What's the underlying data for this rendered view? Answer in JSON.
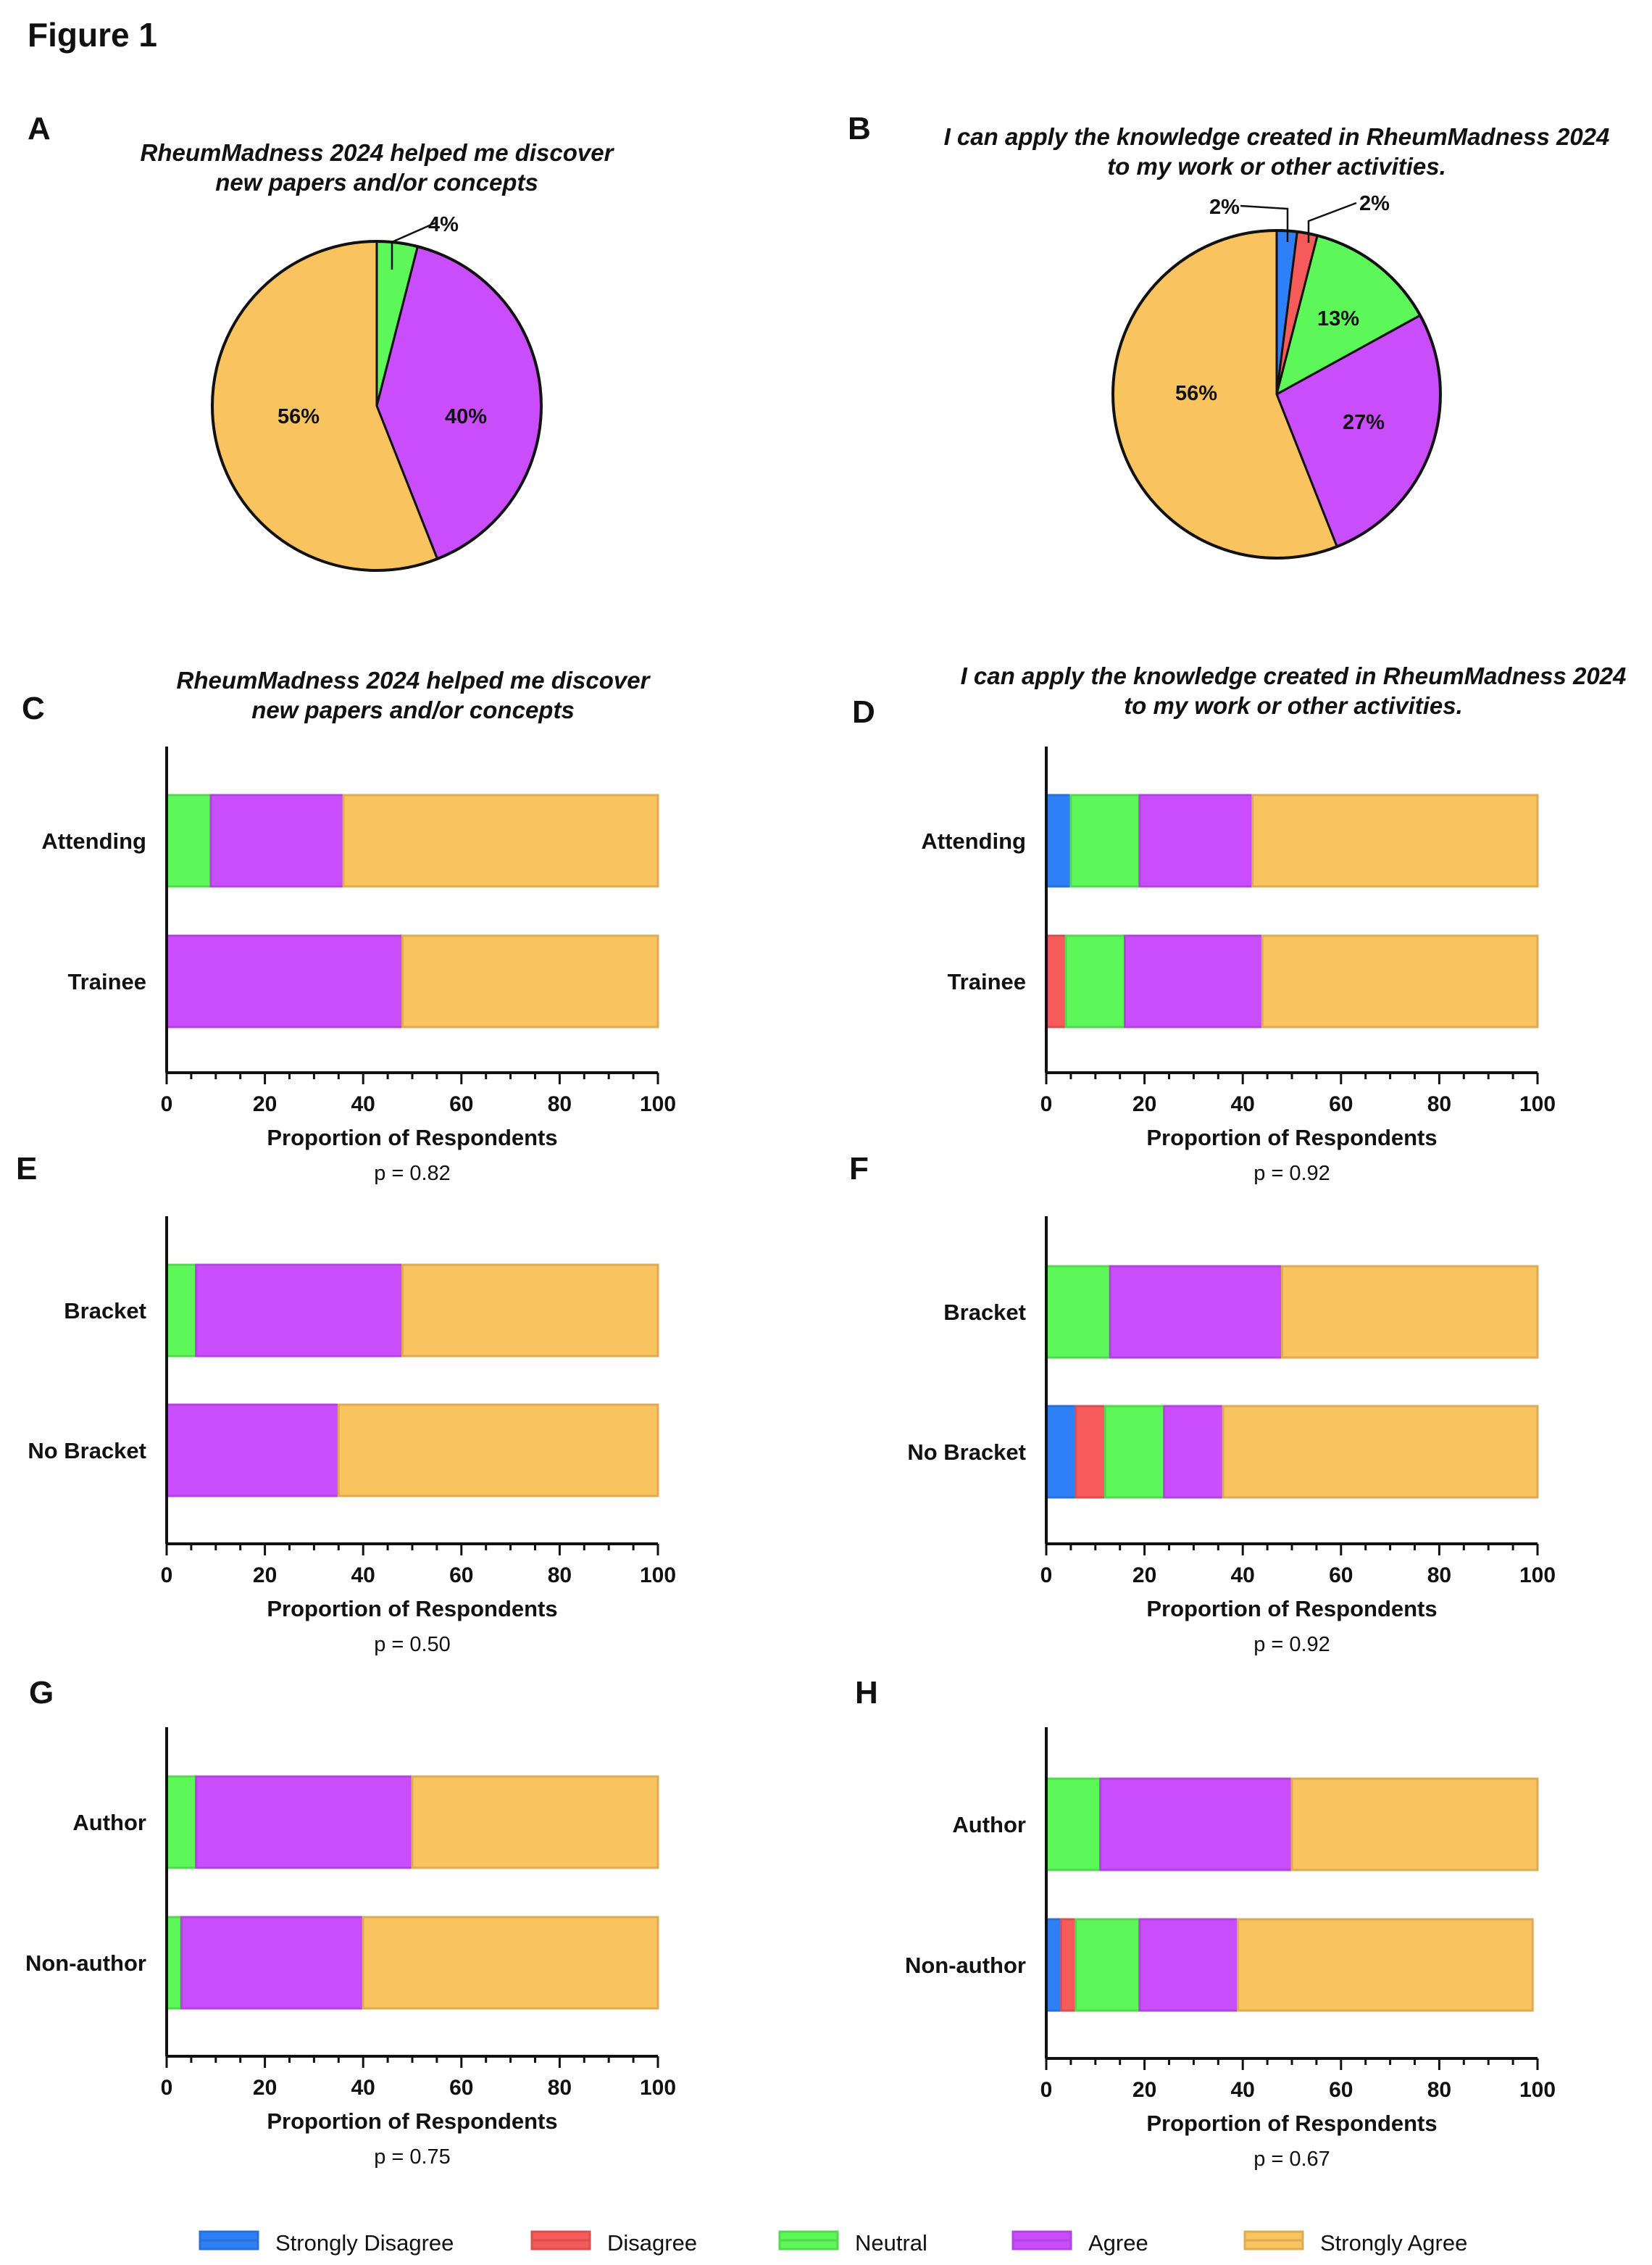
{
  "figure_title": "Figure 1",
  "colors": {
    "Strongly Disagree": "#2f80f7",
    "Disagree": "#f75a5a",
    "Neutral": "#5ef75a",
    "Agree": "#c94dfb",
    "Strongly Agree": "#f9c45f"
  },
  "legend": [
    "Strongly Disagree",
    "Disagree",
    "Neutral",
    "Agree",
    "Strongly Agree"
  ],
  "chart_data": [
    {
      "id": "A",
      "type": "pie",
      "title": "RheumMadness 2024 helped me discover new papers and/or concepts",
      "title_lines": [
        "RheumMadness 2024 helped me discover",
        "new papers and/or concepts"
      ],
      "slices": [
        {
          "category": "Neutral",
          "value": 4,
          "label": "4%"
        },
        {
          "category": "Agree",
          "value": 40,
          "label": "40%"
        },
        {
          "category": "Strongly Agree",
          "value": 56,
          "label": "56%"
        }
      ]
    },
    {
      "id": "B",
      "type": "pie",
      "title": "I can apply the knowledge created in RheumMadness 2024 to my work or other activities.",
      "title_lines": [
        "I can apply the knowledge created in RheumMadness 2024",
        "to my work or other activities."
      ],
      "slices": [
        {
          "category": "Strongly Disagree",
          "value": 2,
          "label": "2%"
        },
        {
          "category": "Disagree",
          "value": 2,
          "label": "2%"
        },
        {
          "category": "Neutral",
          "value": 13,
          "label": "13%"
        },
        {
          "category": "Agree",
          "value": 27,
          "label": "27%"
        },
        {
          "category": "Strongly Agree",
          "value": 56,
          "label": "56%"
        }
      ]
    },
    {
      "id": "C",
      "type": "bar",
      "orientation": "horizontal",
      "stacked": true,
      "title_lines": [
        "RheumMadness 2024 helped me discover",
        "new papers and/or concepts"
      ],
      "xlabel": "Proportion of Respondents",
      "xlim": [
        0,
        100
      ],
      "xticks": [
        "0",
        "20",
        "40",
        "60",
        "80",
        "100"
      ],
      "pvalue": "p = 0.82",
      "categories": [
        "Attending",
        "Trainee"
      ],
      "series": [
        {
          "name": "Strongly Disagree",
          "values": [
            0,
            0
          ]
        },
        {
          "name": "Disagree",
          "values": [
            0,
            0
          ]
        },
        {
          "name": "Neutral",
          "values": [
            9,
            0
          ]
        },
        {
          "name": "Agree",
          "values": [
            27,
            48
          ]
        },
        {
          "name": "Strongly Agree",
          "values": [
            64,
            52
          ]
        }
      ]
    },
    {
      "id": "D",
      "type": "bar",
      "orientation": "horizontal",
      "stacked": true,
      "title_lines": [
        "I can apply the knowledge created in RheumMadness 2024",
        "to my work or other activities."
      ],
      "xlabel": "Proportion of Respondents",
      "xlim": [
        0,
        100
      ],
      "xticks": [
        "0",
        "20",
        "40",
        "60",
        "80",
        "100"
      ],
      "pvalue": "p = 0.92",
      "categories": [
        "Attending",
        "Trainee"
      ],
      "series": [
        {
          "name": "Strongly Disagree",
          "values": [
            5,
            0
          ]
        },
        {
          "name": "Disagree",
          "values": [
            0,
            4
          ]
        },
        {
          "name": "Neutral",
          "values": [
            14,
            12
          ]
        },
        {
          "name": "Agree",
          "values": [
            23,
            28
          ]
        },
        {
          "name": "Strongly Agree",
          "values": [
            58,
            56
          ]
        }
      ]
    },
    {
      "id": "E",
      "type": "bar",
      "orientation": "horizontal",
      "stacked": true,
      "title_lines": [],
      "xlabel": "Proportion of Respondents",
      "xlim": [
        0,
        100
      ],
      "xticks": [
        "0",
        "20",
        "40",
        "60",
        "80",
        "100"
      ],
      "pvalue": "p = 0.50",
      "categories": [
        "Bracket",
        "No Bracket"
      ],
      "series": [
        {
          "name": "Strongly Disagree",
          "values": [
            0,
            0
          ]
        },
        {
          "name": "Disagree",
          "values": [
            0,
            0
          ]
        },
        {
          "name": "Neutral",
          "values": [
            6,
            0
          ]
        },
        {
          "name": "Agree",
          "values": [
            42,
            35
          ]
        },
        {
          "name": "Strongly Agree",
          "values": [
            52,
            65
          ]
        }
      ]
    },
    {
      "id": "F",
      "type": "bar",
      "orientation": "horizontal",
      "stacked": true,
      "title_lines": [],
      "xlabel": "Proportion of Respondents",
      "xlim": [
        0,
        100
      ],
      "xticks": [
        "0",
        "20",
        "40",
        "60",
        "80",
        "100"
      ],
      "pvalue": "p = 0.92",
      "categories": [
        "Bracket",
        "No Bracket"
      ],
      "series": [
        {
          "name": "Strongly Disagree",
          "values": [
            0,
            6
          ]
        },
        {
          "name": "Disagree",
          "values": [
            0,
            6
          ]
        },
        {
          "name": "Neutral",
          "values": [
            13,
            12
          ]
        },
        {
          "name": "Agree",
          "values": [
            35,
            12
          ]
        },
        {
          "name": "Strongly Agree",
          "values": [
            52,
            64
          ]
        }
      ]
    },
    {
      "id": "G",
      "type": "bar",
      "orientation": "horizontal",
      "stacked": true,
      "title_lines": [],
      "xlabel": "Proportion of Respondents",
      "xlim": [
        0,
        100
      ],
      "xticks": [
        "0",
        "20",
        "40",
        "60",
        "80",
        "100"
      ],
      "pvalue": "p = 0.75",
      "categories": [
        "Author",
        "Non-author"
      ],
      "series": [
        {
          "name": "Strongly Disagree",
          "values": [
            0,
            0
          ]
        },
        {
          "name": "Disagree",
          "values": [
            0,
            0
          ]
        },
        {
          "name": "Neutral",
          "values": [
            6,
            3
          ]
        },
        {
          "name": "Agree",
          "values": [
            44,
            37
          ]
        },
        {
          "name": "Strongly Agree",
          "values": [
            50,
            60
          ]
        }
      ]
    },
    {
      "id": "H",
      "type": "bar",
      "orientation": "horizontal",
      "stacked": true,
      "title_lines": [],
      "xlabel": "Proportion of Respondents",
      "xlim": [
        0,
        100
      ],
      "xticks": [
        "0",
        "20",
        "40",
        "60",
        "80",
        "100"
      ],
      "pvalue": "p = 0.67",
      "categories": [
        "Author",
        "Non-author"
      ],
      "series": [
        {
          "name": "Strongly Disagree",
          "values": [
            0,
            3
          ]
        },
        {
          "name": "Disagree",
          "values": [
            0,
            3
          ]
        },
        {
          "name": "Neutral",
          "values": [
            11,
            13
          ]
        },
        {
          "name": "Agree",
          "values": [
            39,
            20
          ]
        },
        {
          "name": "Strongly Agree",
          "values": [
            50,
            60
          ]
        }
      ]
    }
  ]
}
